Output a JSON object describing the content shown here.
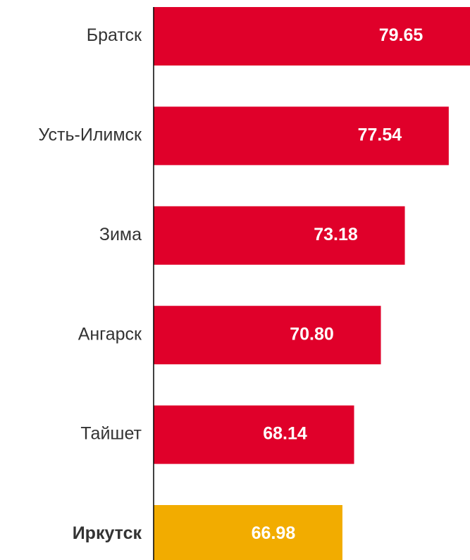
{
  "chart_data": {
    "type": "hbar",
    "categories": [
      "Братск",
      "Усть-Илимск",
      "Зима",
      "Ангарск",
      "Тайшет",
      "Иркутск"
    ],
    "values": [
      79.65,
      77.54,
      73.18,
      70.8,
      68.14,
      66.98
    ],
    "value_labels": [
      "79.65",
      "77.54",
      "73.18",
      "70.80",
      "68.14",
      "66.98"
    ],
    "color": "#e0002a",
    "colors": [
      "#e0002a",
      "#e0002a",
      "#e0002a",
      "#e0002a",
      "#e0002a",
      "#f2ac00"
    ],
    "xlim": [
      48.23,
      79.65
    ]
  }
}
